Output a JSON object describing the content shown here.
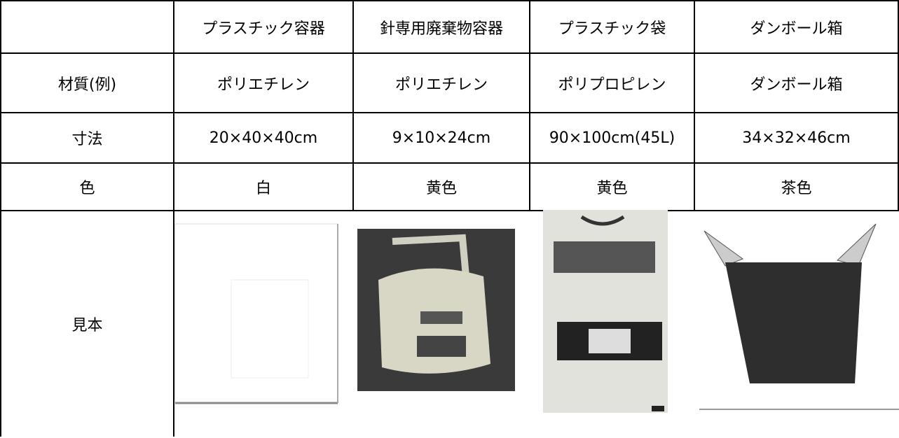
{
  "table": {
    "columns": [
      "プラスチック容器",
      "針専用廃棄物容器",
      "プラスチック袋",
      "ダンボール箱"
    ],
    "rows": [
      {
        "label": "材質(例)",
        "cells": [
          "ポリエチレン",
          "ポリエチレン",
          "ポリプロピレン",
          "ダンボール箱"
        ]
      },
      {
        "label": "寸法",
        "cells": [
          "20×40×40cm",
          "9×10×24cm",
          "90×100cm(45L)",
          "34×32×46cm"
        ]
      },
      {
        "label": "色",
        "cells": [
          "白",
          "黄色",
          "黄色",
          "茶色"
        ]
      },
      {
        "label": "見本"
      }
    ]
  }
}
